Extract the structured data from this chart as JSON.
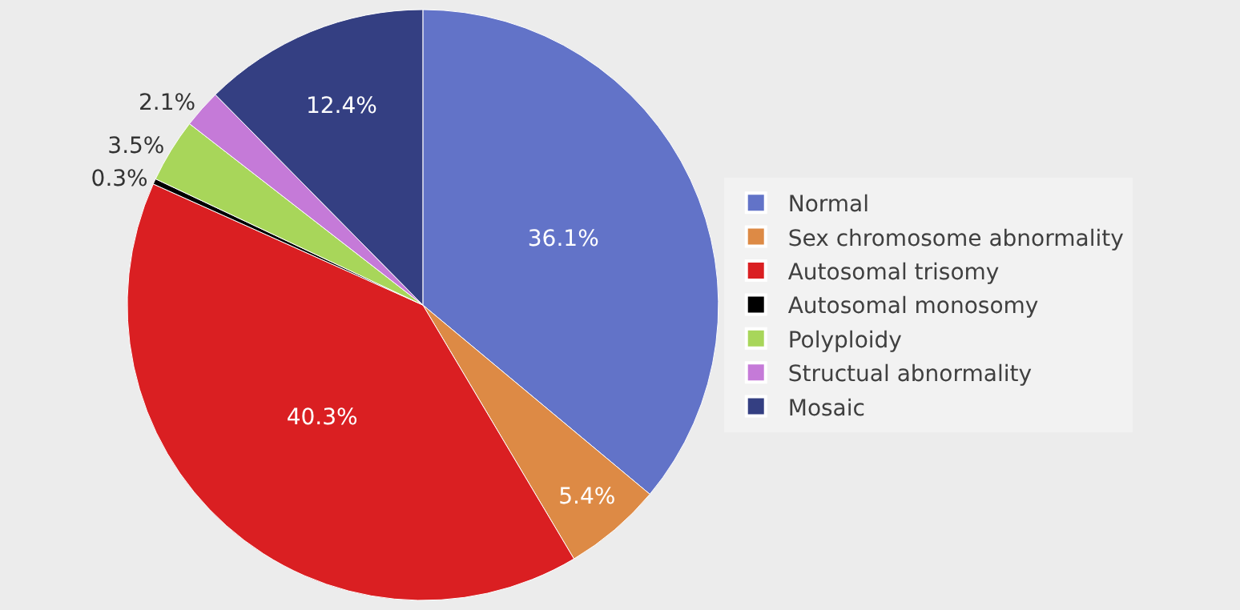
{
  "chart_data": {
    "type": "pie",
    "categories": [
      "Normal",
      "Sex chromosome abnormality",
      "Autosomal trisomy",
      "Autosomal monosomy",
      "Polyploidy",
      "Structual abnormality",
      "Mosaic"
    ],
    "values": [
      36.1,
      5.4,
      40.3,
      0.3,
      3.5,
      2.1,
      12.4
    ],
    "value_labels": [
      "36.1%",
      "5.4%",
      "40.3%",
      "0.3%",
      "3.5%",
      "2.1%",
      "12.4%"
    ],
    "colors": [
      "#6273c8",
      "#dd8a45",
      "#da1f22",
      "#000000",
      "#a8d65a",
      "#c57ad8",
      "#343f82"
    ],
    "legend": "right"
  }
}
